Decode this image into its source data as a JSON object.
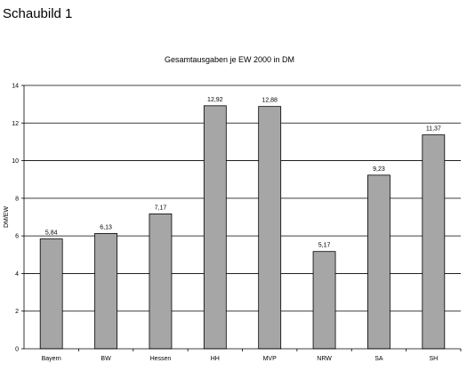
{
  "page": {
    "heading": "Schaubild 1"
  },
  "chart_data": {
    "type": "bar",
    "title": "Gesamtausgaben je EW 2000 in DM",
    "xlabel": "",
    "ylabel": "DM/EW",
    "ylim": [
      0,
      14
    ],
    "yticks": [
      0,
      2,
      4,
      6,
      8,
      10,
      12,
      14
    ],
    "grid": true,
    "legend": "none",
    "bar_color": "#a6a6a6",
    "categories": [
      "Bayern",
      "BW",
      "Hessen",
      "HH",
      "MVP",
      "NRW",
      "SA",
      "SH"
    ],
    "values": [
      5.84,
      6.13,
      7.17,
      12.92,
      12.88,
      5.17,
      9.23,
      11.37
    ],
    "value_labels": [
      "5,84",
      "6,13",
      "7,17",
      "12,92",
      "12,88",
      "5,17",
      "9,23",
      "11,37"
    ]
  }
}
